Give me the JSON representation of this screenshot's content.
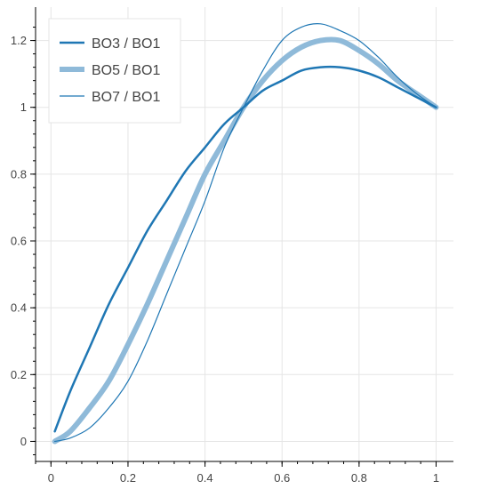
{
  "chart_data": {
    "type": "line",
    "title": "",
    "xlabel": "",
    "ylabel": "",
    "xlim": [
      -0.04,
      1.045
    ],
    "ylim": [
      -0.06,
      1.3
    ],
    "x_ticks": [
      "0",
      "0.2",
      "0.4",
      "0.6",
      "0.8",
      "1"
    ],
    "y_ticks": [
      "0",
      "0.2",
      "0.4",
      "0.6",
      "0.8",
      "1",
      "1.2"
    ],
    "grid": true,
    "legend_position": "top-left",
    "series": [
      {
        "name": "BO3 / BO1",
        "color": "#1f77b4",
        "x": [
          0.01,
          0.05,
          0.1,
          0.15,
          0.2,
          0.25,
          0.3,
          0.35,
          0.4,
          0.45,
          0.5,
          0.55,
          0.6,
          0.65,
          0.7,
          0.75,
          0.8,
          0.85,
          0.9,
          0.95,
          1.0
        ],
        "y": [
          0.03,
          0.15,
          0.28,
          0.41,
          0.52,
          0.63,
          0.72,
          0.81,
          0.88,
          0.95,
          1.0,
          1.05,
          1.08,
          1.11,
          1.12,
          1.12,
          1.11,
          1.09,
          1.06,
          1.03,
          1.0
        ]
      },
      {
        "name": "BO5 / BO1",
        "color": "#8fbad9",
        "x": [
          0.01,
          0.05,
          0.1,
          0.15,
          0.2,
          0.25,
          0.3,
          0.35,
          0.4,
          0.45,
          0.5,
          0.55,
          0.6,
          0.65,
          0.7,
          0.75,
          0.8,
          0.85,
          0.9,
          0.95,
          1.0
        ],
        "y": [
          0.0,
          0.03,
          0.1,
          0.18,
          0.29,
          0.41,
          0.54,
          0.67,
          0.8,
          0.9,
          1.0,
          1.08,
          1.14,
          1.18,
          1.2,
          1.2,
          1.17,
          1.13,
          1.08,
          1.04,
          1.0
        ]
      },
      {
        "name": "BO7 / BO1",
        "color": "#1f77b4",
        "x": [
          0.01,
          0.05,
          0.1,
          0.15,
          0.2,
          0.25,
          0.3,
          0.35,
          0.4,
          0.45,
          0.5,
          0.55,
          0.6,
          0.65,
          0.7,
          0.75,
          0.8,
          0.85,
          0.9,
          0.95,
          1.0
        ],
        "y": [
          0.0,
          0.01,
          0.04,
          0.1,
          0.18,
          0.3,
          0.44,
          0.58,
          0.72,
          0.88,
          1.0,
          1.11,
          1.2,
          1.24,
          1.25,
          1.23,
          1.2,
          1.15,
          1.09,
          1.04,
          1.0
        ]
      }
    ]
  }
}
